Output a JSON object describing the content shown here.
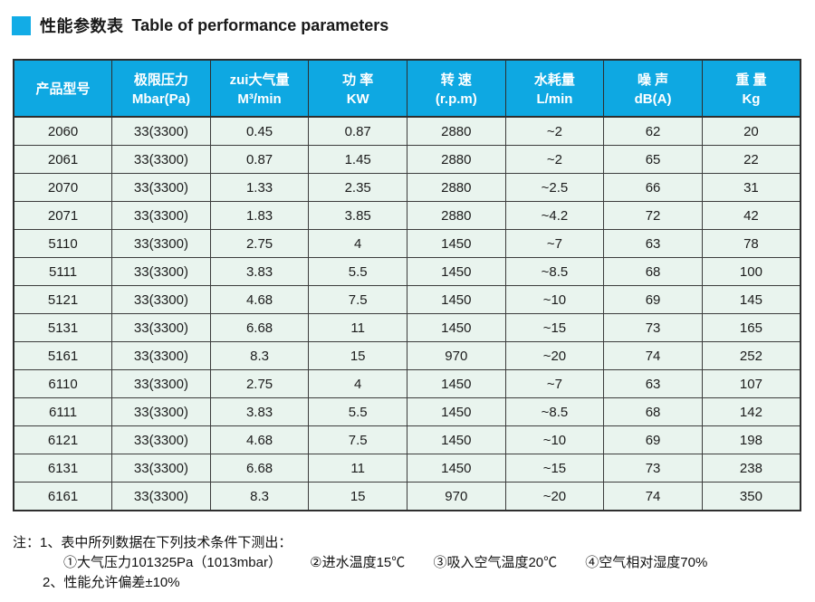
{
  "header": {
    "title_zh": "性能参数表",
    "title_en": "Table of performance parameters"
  },
  "colors": {
    "accent": "#12ACE6",
    "header_bg": "#0EA8E2",
    "row_bg": "#E9F4EE",
    "border": "#2e2e2e"
  },
  "table": {
    "columns": [
      {
        "zh": "产品型号",
        "en": ""
      },
      {
        "zh": "极限压力",
        "en": "Mbar(Pa)"
      },
      {
        "zh": "zui大气量",
        "en": "M³/min"
      },
      {
        "zh": "功 率",
        "en": "KW"
      },
      {
        "zh": "转 速",
        "en": "(r.p.m)"
      },
      {
        "zh": "水耗量",
        "en": "L/min"
      },
      {
        "zh": "噪 声",
        "en": "dB(A)"
      },
      {
        "zh": "重 量",
        "en": "Kg"
      }
    ],
    "rows": [
      [
        "2060",
        "33(3300)",
        "0.45",
        "0.87",
        "2880",
        "~2",
        "62",
        "20"
      ],
      [
        "2061",
        "33(3300)",
        "0.87",
        "1.45",
        "2880",
        "~2",
        "65",
        "22"
      ],
      [
        "2070",
        "33(3300)",
        "1.33",
        "2.35",
        "2880",
        "~2.5",
        "66",
        "31"
      ],
      [
        "2071",
        "33(3300)",
        "1.83",
        "3.85",
        "2880",
        "~4.2",
        "72",
        "42"
      ],
      [
        "5110",
        "33(3300)",
        "2.75",
        "4",
        "1450",
        "~7",
        "63",
        "78"
      ],
      [
        "5111",
        "33(3300)",
        "3.83",
        "5.5",
        "1450",
        "~8.5",
        "68",
        "100"
      ],
      [
        "5121",
        "33(3300)",
        "4.68",
        "7.5",
        "1450",
        "~10",
        "69",
        "145"
      ],
      [
        "5131",
        "33(3300)",
        "6.68",
        "11",
        "1450",
        "~15",
        "73",
        "165"
      ],
      [
        "5161",
        "33(3300)",
        "8.3",
        "15",
        "970",
        "~20",
        "74",
        "252"
      ],
      [
        "6110",
        "33(3300)",
        "2.75",
        "4",
        "1450",
        "~7",
        "63",
        "107"
      ],
      [
        "6111",
        "33(3300)",
        "3.83",
        "5.5",
        "1450",
        "~8.5",
        "68",
        "142"
      ],
      [
        "6121",
        "33(3300)",
        "4.68",
        "7.5",
        "1450",
        "~10",
        "69",
        "198"
      ],
      [
        "6131",
        "33(3300)",
        "6.68",
        "11",
        "1450",
        "~15",
        "73",
        "238"
      ],
      [
        "6161",
        "33(3300)",
        "8.3",
        "15",
        "970",
        "~20",
        "74",
        "350"
      ]
    ]
  },
  "notes": {
    "line1": "注：1、表中所列数据在下列技术条件下测出：",
    "line2_items": [
      "①大气压力101325Pa（1013mbar）",
      "②进水温度15℃",
      "③吸入空气温度20℃",
      "④空气相对湿度70%"
    ],
    "line3": "2、性能允许偏差±10%"
  }
}
